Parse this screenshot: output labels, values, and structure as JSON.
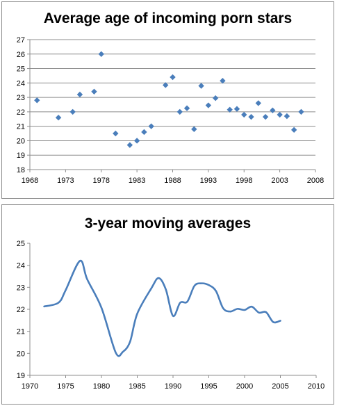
{
  "chart_data": [
    {
      "type": "scatter",
      "title": "Average age of incoming porn stars",
      "xlim": [
        1968,
        2008
      ],
      "ylim": [
        18,
        27
      ],
      "xticks": [
        1968,
        1973,
        1978,
        1983,
        1988,
        1993,
        1998,
        2003,
        2008
      ],
      "yticks": [
        18,
        19,
        20,
        21,
        22,
        23,
        24,
        25,
        26,
        27
      ],
      "grid": "horizontal",
      "marker_color": "#4a7ebb",
      "points": [
        [
          1969,
          22.8
        ],
        [
          1972,
          21.6
        ],
        [
          1974,
          22.0
        ],
        [
          1975,
          23.2
        ],
        [
          1977,
          23.4
        ],
        [
          1978,
          26.0
        ],
        [
          1980,
          20.5
        ],
        [
          1982,
          19.7
        ],
        [
          1983,
          20.0
        ],
        [
          1984,
          20.6
        ],
        [
          1985,
          21.0
        ],
        [
          1987,
          23.85
        ],
        [
          1988,
          24.4
        ],
        [
          1989,
          22.0
        ],
        [
          1990,
          22.25
        ],
        [
          1991,
          20.8
        ],
        [
          1992,
          23.8
        ],
        [
          1993,
          22.45
        ],
        [
          1994,
          22.95
        ],
        [
          1995,
          24.15
        ],
        [
          1996,
          22.15
        ],
        [
          1997,
          22.2
        ],
        [
          1998,
          21.8
        ],
        [
          1999,
          21.65
        ],
        [
          2000,
          22.6
        ],
        [
          2001,
          21.65
        ],
        [
          2002,
          22.1
        ],
        [
          2003,
          21.8
        ],
        [
          2004,
          21.7
        ],
        [
          2005,
          20.75
        ],
        [
          2006,
          22.0
        ]
      ]
    },
    {
      "type": "line",
      "title": "3-year moving averages",
      "xlim": [
        1970,
        2010
      ],
      "ylim": [
        19,
        25
      ],
      "xticks": [
        1970,
        1975,
        1980,
        1985,
        1990,
        1995,
        2000,
        2005,
        2010
      ],
      "yticks": [
        19,
        20,
        21,
        22,
        23,
        24,
        25
      ],
      "grid": "none",
      "line_color": "#4a7ebb",
      "points": [
        [
          1972,
          22.13
        ],
        [
          1974,
          22.3
        ],
        [
          1975,
          22.87
        ],
        [
          1977,
          24.2
        ],
        [
          1978,
          23.37
        ],
        [
          1980,
          22.07
        ],
        [
          1982,
          20.03
        ],
        [
          1983,
          20.07
        ],
        [
          1984,
          20.53
        ],
        [
          1985,
          21.8
        ],
        [
          1987,
          22.97
        ],
        [
          1988,
          23.42
        ],
        [
          1989,
          22.9
        ],
        [
          1990,
          21.7
        ],
        [
          1991,
          22.3
        ],
        [
          1992,
          22.35
        ],
        [
          1993,
          23.07
        ],
        [
          1994,
          23.18
        ],
        [
          1995,
          23.1
        ],
        [
          1996,
          22.83
        ],
        [
          1997,
          22.05
        ],
        [
          1998,
          21.9
        ],
        [
          1999,
          22.02
        ],
        [
          2000,
          21.97
        ],
        [
          2001,
          22.12
        ],
        [
          2002,
          21.85
        ],
        [
          2003,
          21.87
        ],
        [
          2004,
          21.42
        ],
        [
          2005,
          21.48
        ]
      ]
    }
  ]
}
